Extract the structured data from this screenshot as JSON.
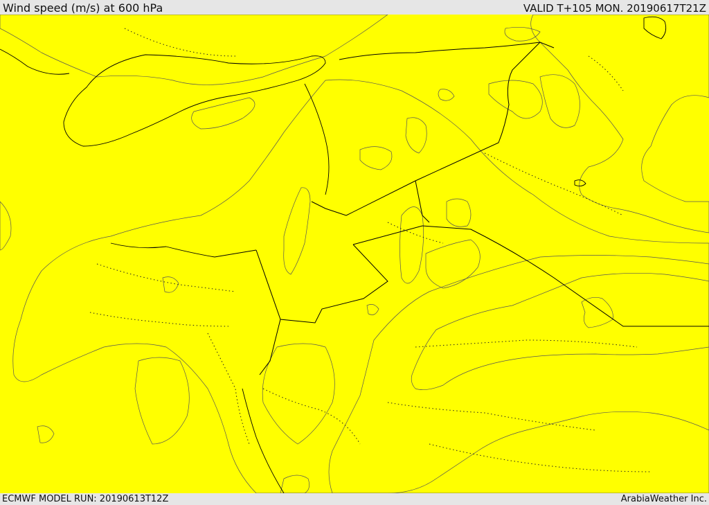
{
  "header": {
    "title": "Wind speed (m/s) at 600 hPa",
    "valid": "VALID T+105 MON. 20190617T21Z"
  },
  "footer": {
    "model_run": "ECMWF MODEL RUN: 20190613T12Z",
    "credit": "ArabiaWeather Inc."
  },
  "colors": {
    "level_lt5": "#ffe0a8",
    "level_5_10": "#ffff00",
    "level_10_15": "#ffdf00",
    "level_15_20": "#ffc200",
    "level_20_25": "#ff9d00",
    "level_25_30": "#ff8a10",
    "water": "#ffffff"
  }
}
